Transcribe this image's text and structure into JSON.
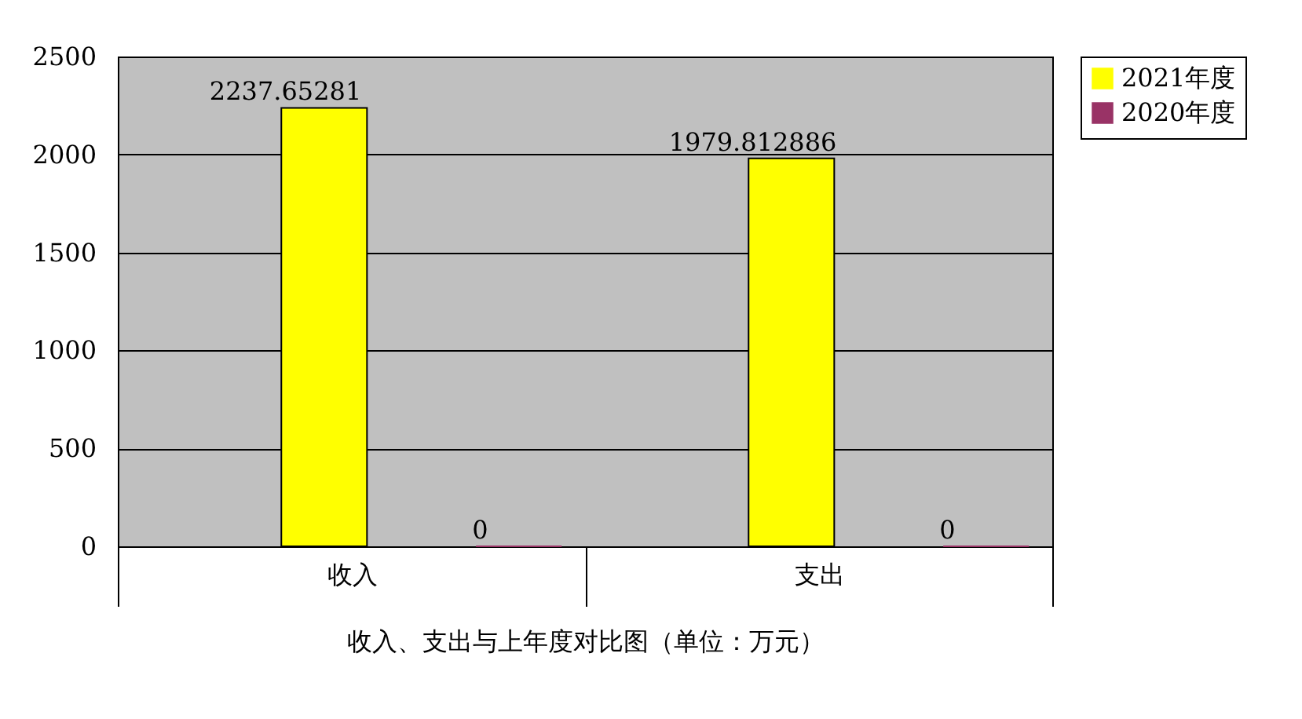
{
  "chart_data": {
    "type": "bar",
    "xlabel": "收入、支出与上年度对比图（单位：万元）",
    "categories": [
      "收入",
      "支出"
    ],
    "series": [
      {
        "name": "2021年度",
        "color": "#ffff00",
        "values": [
          2237.65281,
          1979.812886
        ]
      },
      {
        "name": "2020年度",
        "color": "#993366",
        "values": [
          0,
          0
        ]
      }
    ],
    "ylim": [
      0,
      2500
    ],
    "yticks": [
      0,
      500,
      {
        "value": 1000,
        "label": "1000"
      },
      {
        "value": 1500,
        "label": "1500"
      },
      {
        "value": 2000,
        "label": "2000"
      },
      {
        "value": 2500,
        "label": "2500"
      }
    ],
    "grid": "y",
    "legend": "right",
    "data_labels": true
  }
}
